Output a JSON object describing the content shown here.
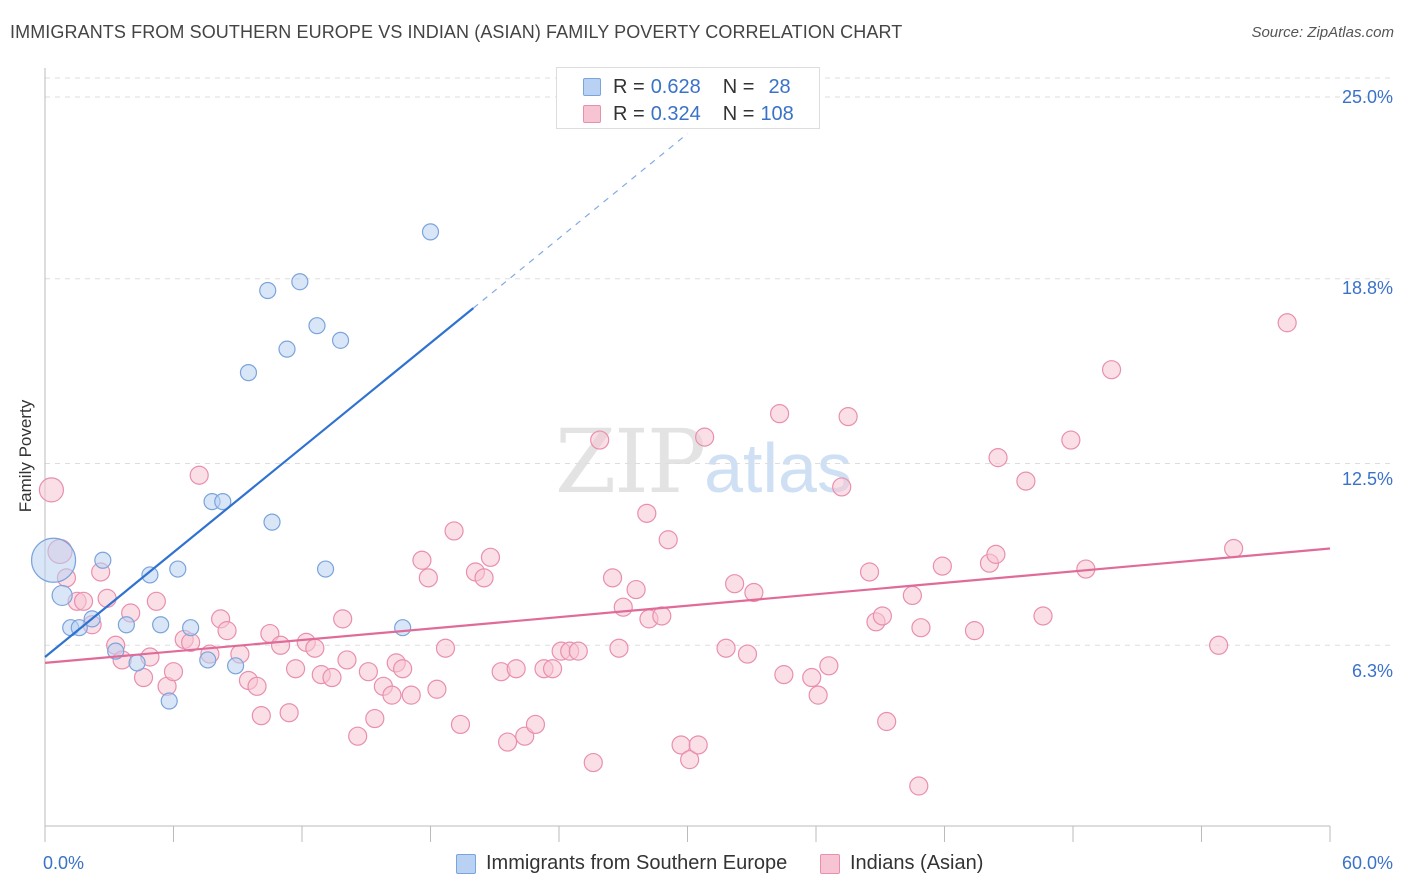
{
  "title": "IMMIGRANTS FROM SOUTHERN EUROPE VS INDIAN (ASIAN) FAMILY POVERTY CORRELATION CHART",
  "source": "Source: ZipAtlas.com",
  "watermark": {
    "zip": "ZIP",
    "atlas": "atlas"
  },
  "legend": {
    "rows": [
      {
        "r_label": "R =",
        "r_value": "0.628",
        "n_label": "N =",
        "n_value": "28"
      },
      {
        "r_label": "R =",
        "r_value": "0.324",
        "n_label": "N =",
        "n_value": "108"
      }
    ]
  },
  "colors": {
    "blue_fill": "#b9d2f3",
    "blue_stroke": "#7ba4db",
    "blue_line": "#2f72d0",
    "pink_fill": "#f7c4d4",
    "pink_stroke": "#e98fad",
    "pink_line": "#e06b98",
    "tick_text": "#3a72c8",
    "grid": "#dddddd"
  },
  "chart_data": {
    "type": "scatter",
    "title": "IMMIGRANTS FROM SOUTHERN EUROPE VS INDIAN (ASIAN) FAMILY POVERTY CORRELATION CHART",
    "xlabel": "",
    "ylabel": "Family Poverty",
    "xlim": [
      0,
      60
    ],
    "ylim": [
      0,
      25
    ],
    "x_tick_labels": [
      "0.0%",
      "60.0%"
    ],
    "y_ticks": [
      6.3,
      12.5,
      18.8,
      25.0
    ],
    "y_tick_labels": [
      "6.3%",
      "12.5%",
      "18.8%",
      "25.0%"
    ],
    "grid": true,
    "legend_position": "bottom",
    "series": [
      {
        "name": "Immigrants from Southern Europe",
        "color": "#7ba4db",
        "R": 0.628,
        "N": 28,
        "trend": {
          "x0": 0,
          "y0": 5.9,
          "x1": 20,
          "y1": 17.8,
          "dash_to_x": 30
        },
        "points": [
          [
            0.4,
            9.2,
            22
          ],
          [
            0.8,
            8.0,
            10
          ],
          [
            1.2,
            6.9,
            8
          ],
          [
            1.6,
            6.9,
            8
          ],
          [
            2.2,
            7.2,
            8
          ],
          [
            2.7,
            9.2,
            8
          ],
          [
            3.3,
            6.1,
            8
          ],
          [
            3.8,
            7.0,
            8
          ],
          [
            4.3,
            5.7,
            8
          ],
          [
            4.9,
            8.7,
            8
          ],
          [
            5.4,
            7.0,
            8
          ],
          [
            5.8,
            4.4,
            8
          ],
          [
            6.2,
            8.9,
            8
          ],
          [
            6.8,
            6.9,
            8
          ],
          [
            7.6,
            5.8,
            8
          ],
          [
            7.8,
            11.2,
            8
          ],
          [
            8.3,
            11.2,
            8
          ],
          [
            8.9,
            5.6,
            8
          ],
          [
            9.5,
            15.6,
            8
          ],
          [
            10.4,
            18.4,
            8
          ],
          [
            10.6,
            10.5,
            8
          ],
          [
            11.3,
            16.4,
            8
          ],
          [
            11.9,
            18.7,
            8
          ],
          [
            12.7,
            17.2,
            8
          ],
          [
            13.1,
            8.9,
            8
          ],
          [
            13.8,
            16.7,
            8
          ],
          [
            16.7,
            6.9,
            8
          ],
          [
            18.0,
            20.4,
            8
          ]
        ]
      },
      {
        "name": "Indians (Asian)",
        "color": "#e98fad",
        "R": 0.324,
        "N": 108,
        "trend": {
          "x0": 0,
          "y0": 5.7,
          "x1": 60,
          "y1": 9.6
        },
        "points": [
          [
            0.3,
            11.6,
            12
          ],
          [
            0.7,
            9.5,
            12
          ],
          [
            1.0,
            8.6,
            9
          ],
          [
            1.5,
            7.8,
            9
          ],
          [
            1.8,
            7.8,
            9
          ],
          [
            2.2,
            7.0,
            9
          ],
          [
            2.6,
            8.8,
            9
          ],
          [
            2.9,
            7.9,
            9
          ],
          [
            3.3,
            6.3,
            9
          ],
          [
            3.6,
            5.8,
            9
          ],
          [
            4.0,
            7.4,
            9
          ],
          [
            4.6,
            5.2,
            9
          ],
          [
            4.9,
            5.9,
            9
          ],
          [
            5.2,
            7.8,
            9
          ],
          [
            5.7,
            4.9,
            9
          ],
          [
            6.0,
            5.4,
            9
          ],
          [
            6.5,
            6.5,
            9
          ],
          [
            6.8,
            6.4,
            9
          ],
          [
            7.2,
            12.1,
            9
          ],
          [
            7.7,
            6.0,
            9
          ],
          [
            8.2,
            7.2,
            9
          ],
          [
            8.5,
            6.8,
            9
          ],
          [
            9.1,
            6.0,
            9
          ],
          [
            9.5,
            5.1,
            9
          ],
          [
            9.9,
            4.9,
            9
          ],
          [
            10.1,
            3.9,
            9
          ],
          [
            10.5,
            6.7,
            9
          ],
          [
            11.0,
            6.3,
            9
          ],
          [
            11.4,
            4.0,
            9
          ],
          [
            11.7,
            5.5,
            9
          ],
          [
            12.2,
            6.4,
            9
          ],
          [
            12.6,
            6.2,
            9
          ],
          [
            12.9,
            5.3,
            9
          ],
          [
            13.4,
            5.2,
            9
          ],
          [
            13.9,
            7.2,
            9
          ],
          [
            14.1,
            5.8,
            9
          ],
          [
            14.6,
            3.2,
            9
          ],
          [
            15.1,
            5.4,
            9
          ],
          [
            15.4,
            3.8,
            9
          ],
          [
            15.8,
            4.9,
            9
          ],
          [
            16.4,
            5.7,
            9
          ],
          [
            16.7,
            5.5,
            9
          ],
          [
            17.1,
            4.6,
            9
          ],
          [
            17.6,
            9.2,
            9
          ],
          [
            17.9,
            8.6,
            9
          ],
          [
            18.3,
            4.8,
            9
          ],
          [
            18.7,
            6.2,
            9
          ],
          [
            19.1,
            10.2,
            9
          ],
          [
            19.4,
            3.6,
            9
          ],
          [
            20.1,
            8.8,
            9
          ],
          [
            20.5,
            8.6,
            9
          ],
          [
            20.8,
            9.3,
            9
          ],
          [
            21.3,
            5.4,
            9
          ],
          [
            21.6,
            3.0,
            9
          ],
          [
            22.0,
            5.5,
            9
          ],
          [
            22.4,
            3.2,
            9
          ],
          [
            22.9,
            3.6,
            9
          ],
          [
            23.3,
            5.5,
            9
          ],
          [
            23.7,
            5.5,
            9
          ],
          [
            24.1,
            6.1,
            9
          ],
          [
            24.5,
            6.1,
            9
          ],
          [
            24.9,
            6.1,
            9
          ],
          [
            25.6,
            2.3,
            9
          ],
          [
            25.9,
            13.3,
            9
          ],
          [
            26.8,
            6.2,
            9
          ],
          [
            27.0,
            7.6,
            9
          ],
          [
            27.6,
            8.2,
            9
          ],
          [
            28.1,
            10.8,
            9
          ],
          [
            28.2,
            7.2,
            9
          ],
          [
            28.8,
            7.3,
            9
          ],
          [
            29.1,
            9.9,
            9
          ],
          [
            29.7,
            2.9,
            9
          ],
          [
            30.1,
            2.4,
            9
          ],
          [
            30.5,
            2.9,
            9
          ],
          [
            30.8,
            13.4,
            9
          ],
          [
            31.8,
            6.2,
            9
          ],
          [
            32.2,
            8.4,
            9
          ],
          [
            32.8,
            6.0,
            9
          ],
          [
            33.1,
            8.1,
            9
          ],
          [
            34.3,
            14.2,
            9
          ],
          [
            34.5,
            5.3,
            9
          ],
          [
            35.8,
            5.2,
            9
          ],
          [
            36.1,
            4.6,
            9
          ],
          [
            36.6,
            5.6,
            9
          ],
          [
            37.2,
            11.7,
            9
          ],
          [
            37.5,
            14.1,
            9
          ],
          [
            38.5,
            8.8,
            9
          ],
          [
            38.8,
            7.1,
            9
          ],
          [
            39.1,
            7.3,
            9
          ],
          [
            39.3,
            3.7,
            9
          ],
          [
            40.5,
            8.0,
            9
          ],
          [
            40.8,
            1.5,
            9
          ],
          [
            40.9,
            6.9,
            9
          ],
          [
            41.9,
            9.0,
            9
          ],
          [
            43.4,
            6.8,
            9
          ],
          [
            44.1,
            9.1,
            9
          ],
          [
            44.4,
            9.4,
            9
          ],
          [
            44.5,
            12.7,
            9
          ],
          [
            45.8,
            11.9,
            9
          ],
          [
            46.6,
            7.3,
            9
          ],
          [
            47.9,
            13.3,
            9
          ],
          [
            48.6,
            8.9,
            9
          ],
          [
            49.8,
            15.7,
            9
          ],
          [
            54.8,
            6.3,
            9
          ],
          [
            55.5,
            9.6,
            9
          ],
          [
            58.0,
            17.3,
            9
          ],
          [
            26.5,
            8.6,
            9
          ],
          [
            16.2,
            4.6,
            9
          ]
        ]
      }
    ]
  }
}
